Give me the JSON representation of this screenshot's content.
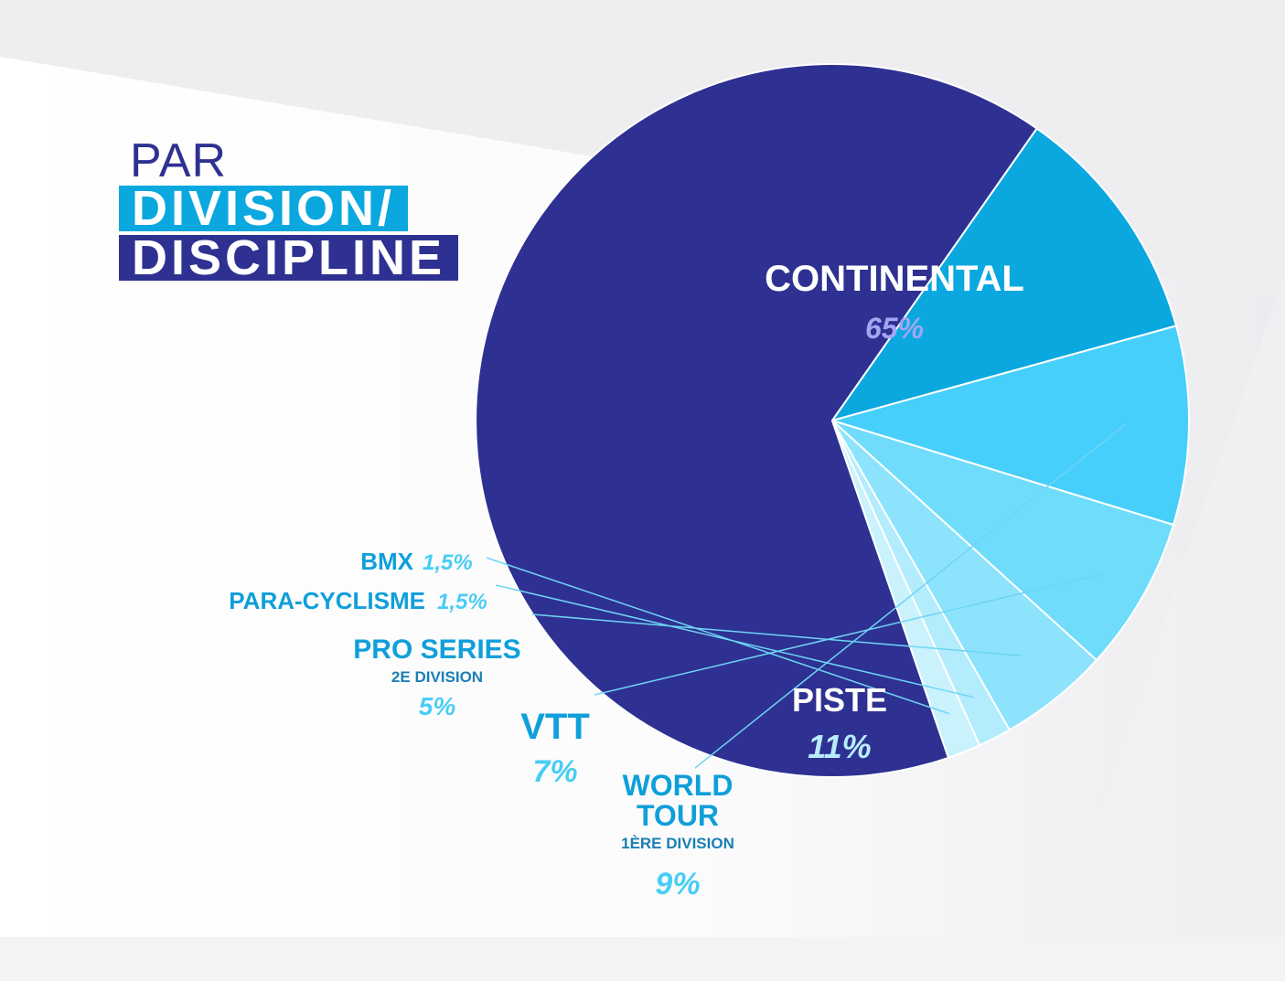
{
  "title": {
    "line1": "PAR",
    "line2": "DIVISION/",
    "line3": "DISCIPLINE"
  },
  "colors": {
    "background": "#f1f1f3",
    "title_dark": "#2e3191",
    "title_light": "#0aa8df",
    "label_blue": "#0f9fda",
    "percent_cyan": "#48cdf5"
  },
  "chart_data": {
    "type": "pie",
    "slices": [
      {
        "label": "CONTINENTAL",
        "sublabel": "",
        "value": 65,
        "percent_text": "65%",
        "color": "#2e3191"
      },
      {
        "label": "PISTE",
        "sublabel": "",
        "value": 11,
        "percent_text": "11%",
        "color": "#0aa8df"
      },
      {
        "label": "WORLD TOUR",
        "sublabel": "1ÈRE DIVISION",
        "value": 9,
        "percent_text": "9%",
        "color": "#46cffa"
      },
      {
        "label": "VTT",
        "sublabel": "",
        "value": 7,
        "percent_text": "7%",
        "color": "#6fdcfb"
      },
      {
        "label": "PRO SERIES",
        "sublabel": "2E DIVISION",
        "value": 5,
        "percent_text": "5%",
        "color": "#8de3fb"
      },
      {
        "label": "PARA-CYCLISME",
        "sublabel": "",
        "value": 1.5,
        "percent_text": "1,5%",
        "color": "#b3ecfc"
      },
      {
        "label": "BMX",
        "sublabel": "",
        "value": 1.5,
        "percent_text": "1,5%",
        "color": "#c9f2fd"
      }
    ]
  }
}
